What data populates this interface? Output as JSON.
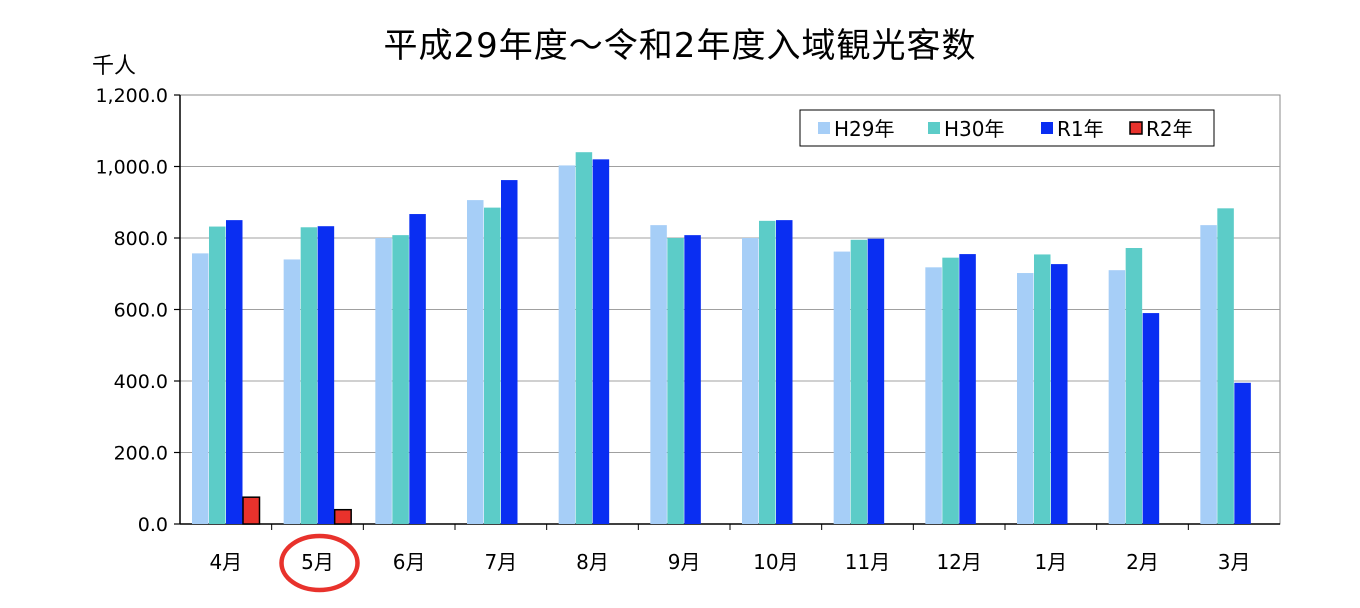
{
  "chart_data": {
    "type": "bar",
    "title": "平成29年度～令和2年度入域観光客数",
    "ylabel": "千人",
    "xlabel": "",
    "ylim": [
      0,
      1200
    ],
    "yticks": [
      "0.0",
      "200.0",
      "400.0",
      "600.0",
      "800.0",
      "1,000.0",
      "1,200.0"
    ],
    "grid": true,
    "legend_position": "top-right",
    "categories": [
      "4月",
      "5月",
      "6月",
      "7月",
      "8月",
      "9月",
      "10月",
      "11月",
      "12月",
      "1月",
      "2月",
      "3月"
    ],
    "series": [
      {
        "name": "H29年",
        "color": "#a6cef7",
        "values": [
          757,
          740,
          800,
          906,
          1003,
          836,
          800,
          762,
          718,
          702,
          710,
          836
        ]
      },
      {
        "name": "H30年",
        "color": "#5cccc8",
        "values": [
          832,
          830,
          808,
          885,
          1040,
          800,
          848,
          795,
          745,
          754,
          772,
          883
        ]
      },
      {
        "name": "R1年",
        "color": "#0a2ef2",
        "values": [
          850,
          833,
          867,
          962,
          1020,
          808,
          850,
          798,
          755,
          727,
          590,
          395
        ]
      },
      {
        "name": "R2年",
        "color": "#e8322c",
        "values": [
          75,
          40,
          null,
          null,
          null,
          null,
          null,
          null,
          null,
          null,
          null,
          null
        ]
      }
    ],
    "annotation": {
      "type": "circle",
      "target_category": "5月",
      "color": "#e8322c"
    }
  }
}
